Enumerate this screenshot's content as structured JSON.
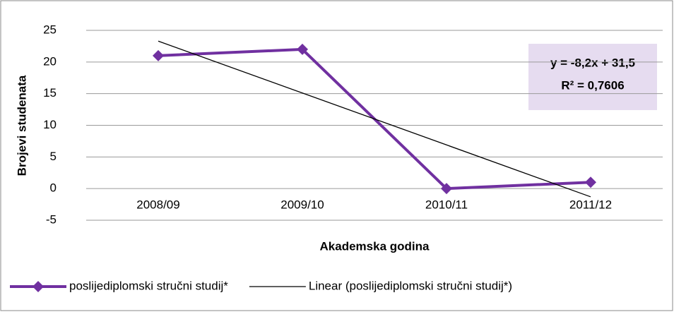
{
  "chart_data": {
    "type": "line",
    "y_label": "Brojevi studenata",
    "x_label": "Akademska godina",
    "categories": [
      "2008/09",
      "2009/10",
      "2010/11",
      "2011/12"
    ],
    "series": [
      {
        "name": "poslijediplomski stručni studij*",
        "color": "#7030a0",
        "values": [
          21,
          22,
          0,
          1
        ]
      },
      {
        "name": "Linear (poslijediplomski stručni studij*)",
        "color": "#000000",
        "values": [
          23.3,
          15.1,
          6.9,
          -1.3
        ]
      }
    ],
    "annotations": [
      "y = -8,2x + 31,5",
      "R² = 0,7606"
    ],
    "ylim": [
      -5,
      25
    ],
    "yticks": [
      -5,
      0,
      5,
      10,
      15,
      20,
      25
    ],
    "grid": true
  }
}
